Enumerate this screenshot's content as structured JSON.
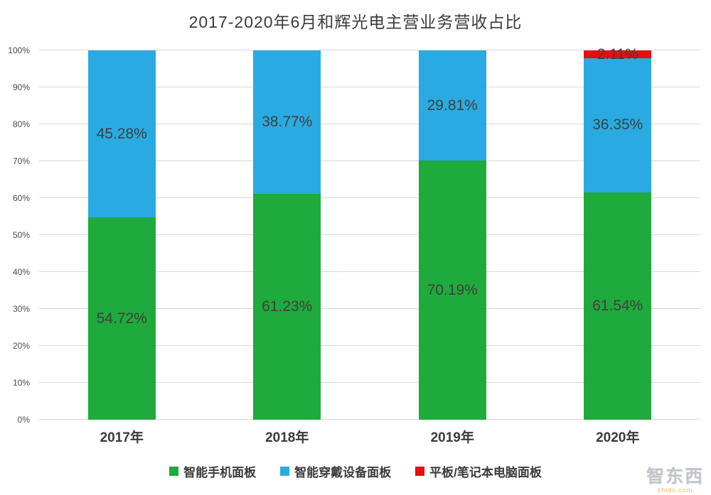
{
  "chart_data": {
    "type": "bar",
    "stacked": true,
    "title": "2017-2020年6月和辉光电主营业务营收占比",
    "categories": [
      "2017年",
      "2018年",
      "2019年",
      "2020年"
    ],
    "series": [
      {
        "name": "智能手机面板",
        "color": "#1faa3c",
        "values": [
          54.72,
          61.23,
          70.19,
          61.54
        ],
        "labels": [
          "54.72%",
          "61.23%",
          "70.19%",
          "61.54%"
        ]
      },
      {
        "name": "智能穿戴设备面板",
        "color": "#29abe2",
        "values": [
          45.28,
          38.77,
          29.81,
          36.35
        ],
        "labels": [
          "45.28%",
          "38.77%",
          "29.81%",
          "36.35%"
        ]
      },
      {
        "name": "平板/笔记本电脑面板",
        "color": "#e60e0e",
        "values": [
          0,
          0,
          0,
          2.11
        ],
        "labels": [
          "",
          "",
          "",
          "2.11%"
        ]
      }
    ],
    "y_ticks": [
      "0%",
      "10%",
      "20%",
      "30%",
      "40%",
      "50%",
      "60%",
      "70%",
      "80%",
      "90%",
      "100%"
    ],
    "ylim": [
      0,
      100
    ],
    "grid": true,
    "legend_position": "bottom"
  },
  "watermark": {
    "text": "智东西",
    "subtext": "zhidx.com"
  }
}
